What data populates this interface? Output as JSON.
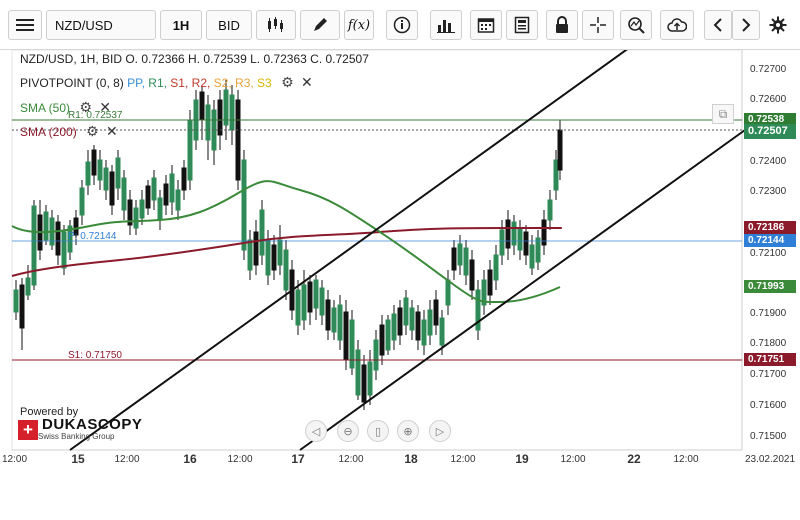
{
  "toolbar": {
    "symbol": "NZD/USD",
    "timeframe": "1H",
    "price_side": "BID",
    "fx_label": "f(x)"
  },
  "legend": {
    "ohlc": "NZD/USD, 1H, BID   O. 0.72366 H. 0.72539 L. 0.72363 C. 0.72507",
    "pivot_name": "PIVOTPOINT (0, 8)",
    "pivot_items": [
      {
        "label": "PP,",
        "color": "#3b8ed8"
      },
      {
        "label": "R1,",
        "color": "#2e8b57"
      },
      {
        "label": "S1,",
        "color": "#c0392b"
      },
      {
        "label": "R2,",
        "color": "#c0392b"
      },
      {
        "label": "S2,",
        "color": "#e6a23c"
      },
      {
        "label": "R3,",
        "color": "#e6a23c"
      },
      {
        "label": "S3",
        "color": "#d4b800"
      }
    ],
    "sma50": "SMA (50)",
    "sma200": "SMA (200)",
    "sma50_color": "#3a8a3a",
    "sma200_color": "#8b1a2a"
  },
  "levels": {
    "r1_label": "R1: 0.72537",
    "pp_label": "P: 0.72144",
    "s1_label": "S1: 0.71750"
  },
  "price_axis": {
    "ticks": [
      "0.72700",
      "0.72600",
      "0.72538",
      "0.72507",
      "0.72400",
      "0.72300",
      "0.72186",
      "0.72144",
      "0.72100",
      "0.71993",
      "0.71900",
      "0.71800",
      "0.71751",
      "0.71700",
      "0.71600",
      "0.71500"
    ]
  },
  "tags": {
    "r1": {
      "text": "0.72538",
      "color": "#2e7d32"
    },
    "close": {
      "text": "0.72507",
      "color": "#2e8b57"
    },
    "sma200": {
      "text": "0.72186",
      "color": "#8b1a2a"
    },
    "pp": {
      "text": "0.72144",
      "color": "#2f7fd6"
    },
    "sma50": {
      "text": "0.71993",
      "color": "#3a8a3a"
    },
    "s1": {
      "text": "0.71751",
      "color": "#8b1a2a"
    }
  },
  "time_axis": {
    "labels": [
      "12:00",
      "15",
      "12:00",
      "16",
      "12:00",
      "17",
      "12:00",
      "18",
      "12:00",
      "19",
      "12:00",
      "22",
      "12:00",
      "23.02.2021"
    ]
  },
  "branding": {
    "powered": "Powered by",
    "brand": "DUKASCOPY",
    "sub": "Swiss Banking Group"
  },
  "icons": {
    "accent": "#2e8b57",
    "down": "#111111"
  }
}
